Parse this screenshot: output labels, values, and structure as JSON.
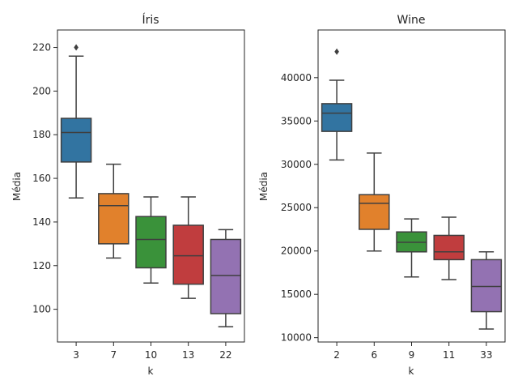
{
  "chart_data": [
    {
      "type": "box",
      "title": "Íris",
      "xlabel": "k",
      "ylabel": "Média",
      "ylim": [
        85,
        228
      ],
      "yticks": [
        100,
        120,
        140,
        160,
        180,
        200,
        220
      ],
      "grid": false,
      "categories": [
        "3",
        "7",
        "10",
        "13",
        "22"
      ],
      "colors": [
        "#3274a1",
        "#e1812c",
        "#3a923a",
        "#c03d3e",
        "#9372b2"
      ],
      "boxes": [
        {
          "category": "3",
          "whisker_low": 151,
          "q1": 167.5,
          "median": 181,
          "q3": 187.5,
          "whisker_high": 216,
          "outliers": [
            220
          ]
        },
        {
          "category": "7",
          "whisker_low": 123.5,
          "q1": 130,
          "median": 147.5,
          "q3": 153,
          "whisker_high": 166.5,
          "outliers": []
        },
        {
          "category": "10",
          "whisker_low": 112,
          "q1": 119,
          "median": 132,
          "q3": 142.5,
          "whisker_high": 151.5,
          "outliers": []
        },
        {
          "category": "13",
          "whisker_low": 105,
          "q1": 111.5,
          "median": 124.5,
          "q3": 138.5,
          "whisker_high": 151.5,
          "outliers": []
        },
        {
          "category": "22",
          "whisker_low": 92,
          "q1": 98,
          "median": 115.5,
          "q3": 132,
          "whisker_high": 136.5,
          "outliers": []
        }
      ]
    },
    {
      "type": "box",
      "title": "Wine",
      "xlabel": "k",
      "ylabel": "Média",
      "ylim": [
        9500,
        45500
      ],
      "yticks": [
        10000,
        15000,
        20000,
        25000,
        30000,
        35000,
        40000
      ],
      "grid": false,
      "categories": [
        "2",
        "6",
        "9",
        "11",
        "33"
      ],
      "colors": [
        "#3274a1",
        "#e1812c",
        "#3a923a",
        "#c03d3e",
        "#9372b2"
      ],
      "boxes": [
        {
          "category": "2",
          "whisker_low": 30500,
          "q1": 33800,
          "median": 35900,
          "q3": 37000,
          "whisker_high": 39700,
          "outliers": [
            43000
          ]
        },
        {
          "category": "6",
          "whisker_low": 20000,
          "q1": 22500,
          "median": 25500,
          "q3": 26500,
          "whisker_high": 31300,
          "outliers": []
        },
        {
          "category": "9",
          "whisker_low": 17000,
          "q1": 19900,
          "median": 21000,
          "q3": 22200,
          "whisker_high": 23700,
          "outliers": []
        },
        {
          "category": "11",
          "whisker_low": 16700,
          "q1": 19000,
          "median": 19900,
          "q3": 21800,
          "whisker_high": 23900,
          "outliers": []
        },
        {
          "category": "33",
          "whisker_low": 11000,
          "q1": 13000,
          "median": 15900,
          "q3": 19000,
          "whisker_high": 19900,
          "outliers": []
        }
      ]
    }
  ]
}
